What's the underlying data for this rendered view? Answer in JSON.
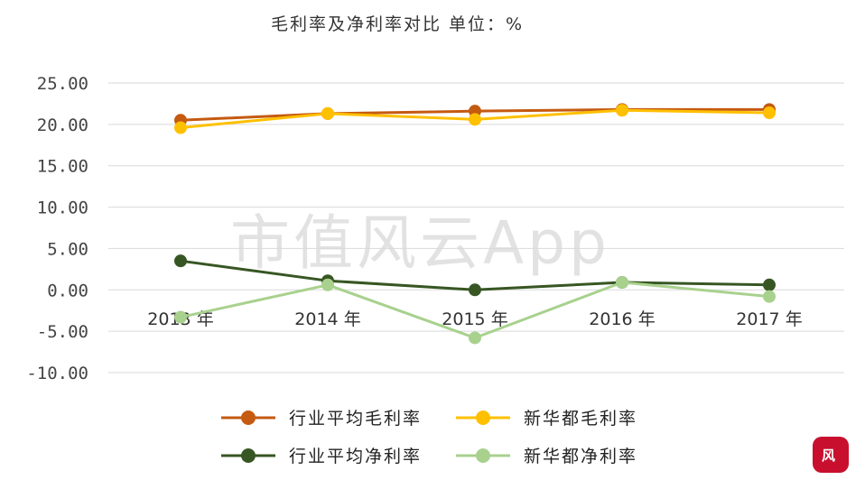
{
  "watermark": "市值风云App",
  "logo_text": "风",
  "chart_data": {
    "type": "line",
    "title": "毛利率及净利率对比    单位：%",
    "categories": [
      "2013 年",
      "2014 年",
      "2015 年",
      "2016 年",
      "2017 年"
    ],
    "ylim": [
      -10,
      25
    ],
    "yticks": [
      "25.00",
      "20.00",
      "15.00",
      "10.00",
      "5.00",
      "0.00",
      "-5.00",
      "-10.00"
    ],
    "grid": true,
    "legend_position": "bottom",
    "series": [
      {
        "name": "行业平均毛利率",
        "color": "#c55a11",
        "values": [
          20.5,
          21.3,
          21.6,
          21.8,
          21.8
        ]
      },
      {
        "name": "新华都毛利率",
        "color": "#ffc000",
        "values": [
          19.6,
          21.3,
          20.6,
          21.7,
          21.4
        ]
      },
      {
        "name": "行业平均净利率",
        "color": "#375623",
        "values": [
          3.5,
          1.1,
          0.0,
          0.9,
          0.6
        ]
      },
      {
        "name": "新华都净利率",
        "color": "#a9d18e",
        "values": [
          -3.3,
          0.6,
          -5.8,
          0.9,
          -0.8
        ]
      }
    ]
  }
}
